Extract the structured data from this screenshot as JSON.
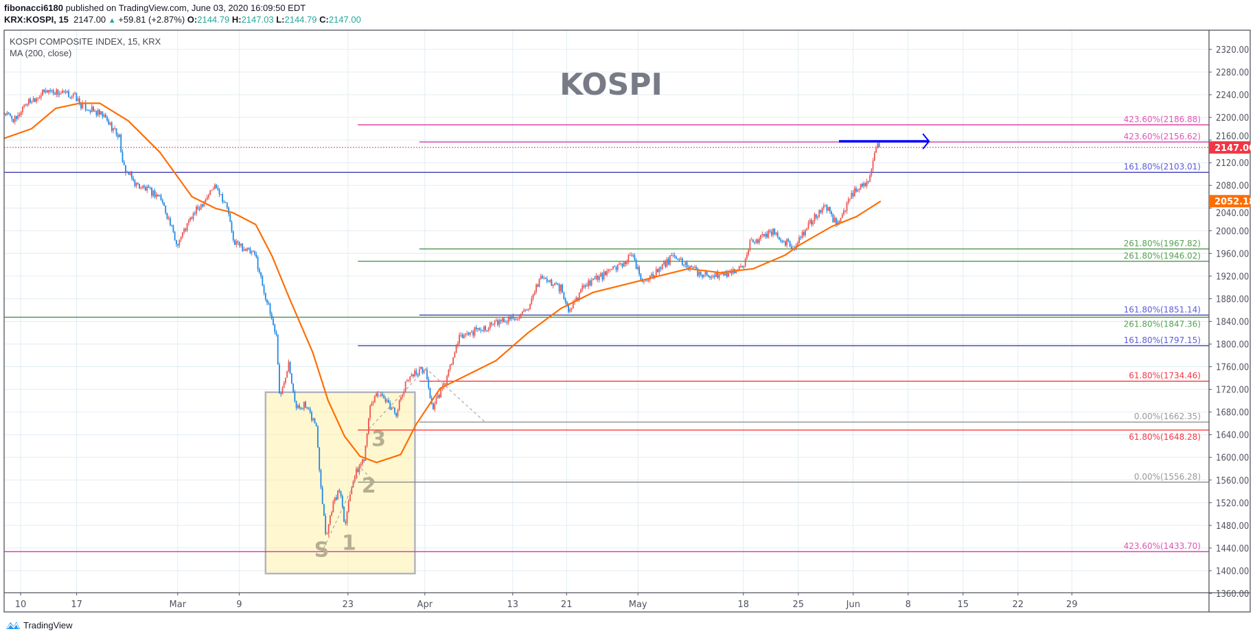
{
  "header": {
    "author": "fibonacci6180",
    "published": " published on TradingView.com, June 03, 2020 16:09:50 EDT",
    "symbol": "KRX:KOSPI, 15",
    "last": "2147.00",
    "change": "+59.81 (+2.87%)",
    "o_label": "O:",
    "o": "2144.79",
    "h_label": "H:",
    "h": "2147.03",
    "l_label": "L:",
    "l": "2144.79",
    "c_label": "C:",
    "c": "2147.00"
  },
  "legend": {
    "title": "KOSPI COMPOSITE INDEX, 15, KRX",
    "indicator": "MA (200, close)"
  },
  "footer": {
    "brand": "TradingView"
  },
  "colors": {
    "up": "#ef5350",
    "down": "#1e88e5",
    "ma": "#ff6d00",
    "price_tag": "#f23645",
    "grid": "#e1ecf2",
    "magenta": "#d6339e",
    "blue": "#2a2ab0",
    "green": "#3a8a3a",
    "red": "#ff2020",
    "gray": "#888888",
    "arrow": "#0000ff"
  },
  "chart_data": {
    "type": "line",
    "title": "KOSPI",
    "xlabel": "",
    "ylabel": "",
    "x_unit": "trading sessions from chart start",
    "xlim": [
      0,
      109.7
    ],
    "ylim": [
      1360,
      2340
    ],
    "grid": true,
    "y_ticks": [
      "2320.00",
      "2280.00",
      "2240.00",
      "2200.00",
      "2160.00",
      "2120.00",
      "2080.00",
      "2040.00",
      "2000.00",
      "1960.00",
      "1920.00",
      "1880.00",
      "1840.00",
      "1800.00",
      "1760.00",
      "1720.00",
      "1680.00",
      "1640.00",
      "1600.00",
      "1560.00",
      "1520.00",
      "1480.00",
      "1440.00",
      "1400.00",
      "1360.00"
    ],
    "x_ticks": [
      {
        "label": "10",
        "x": 1.5
      },
      {
        "label": "17",
        "x": 6.6
      },
      {
        "label": "Mar",
        "x": 15.8
      },
      {
        "label": "9",
        "x": 21.4
      },
      {
        "label": "23",
        "x": 31.3
      },
      {
        "label": "Apr",
        "x": 38.3
      },
      {
        "label": "13",
        "x": 46.3
      },
      {
        "label": "21",
        "x": 51.2
      },
      {
        "label": "May",
        "x": 57.7
      },
      {
        "label": "18",
        "x": 67.3
      },
      {
        "label": "25",
        "x": 72.3
      },
      {
        "label": "Jun",
        "x": 77.3
      },
      {
        "label": "8",
        "x": 82.3
      },
      {
        "label": "15",
        "x": 87.3
      },
      {
        "label": "22",
        "x": 92.3
      },
      {
        "label": "29",
        "x": 97.2
      }
    ],
    "series": [
      {
        "name": "KOSPI (15m candles, approx path)",
        "points": [
          [
            0,
            2208
          ],
          [
            1.1,
            2194
          ],
          [
            1.8,
            2223
          ],
          [
            4.0,
            2248
          ],
          [
            6.5,
            2237
          ],
          [
            6.9,
            2223
          ],
          [
            9.1,
            2201
          ],
          [
            10.6,
            2163
          ],
          [
            10.7,
            2117
          ],
          [
            12.0,
            2082
          ],
          [
            14.2,
            2060
          ],
          [
            14.9,
            2025
          ],
          [
            15.7,
            1976
          ],
          [
            17.1,
            2025
          ],
          [
            19.3,
            2082
          ],
          [
            20.4,
            2036
          ],
          [
            20.8,
            1983
          ],
          [
            22.9,
            1955
          ],
          [
            23.7,
            1891
          ],
          [
            24.4,
            1842
          ],
          [
            24.8,
            1813
          ],
          [
            25.1,
            1700
          ],
          [
            25.9,
            1771
          ],
          [
            26.6,
            1686
          ],
          [
            27.3,
            1693
          ],
          [
            28.4,
            1658
          ],
          [
            28.8,
            1559
          ],
          [
            29.3,
            1461
          ],
          [
            29.9,
            1517
          ],
          [
            30.6,
            1545
          ],
          [
            31.0,
            1482
          ],
          [
            31.7,
            1559
          ],
          [
            32.8,
            1602
          ],
          [
            33.2,
            1679
          ],
          [
            33.9,
            1715
          ],
          [
            34.6,
            1700
          ],
          [
            35.7,
            1679
          ],
          [
            36.8,
            1743
          ],
          [
            38.3,
            1757
          ],
          [
            39.0,
            1686
          ],
          [
            40.1,
            1729
          ],
          [
            41.5,
            1813
          ],
          [
            43.4,
            1827
          ],
          [
            45.6,
            1842
          ],
          [
            47.7,
            1856
          ],
          [
            48.8,
            1919
          ],
          [
            50.7,
            1898
          ],
          [
            51.4,
            1856
          ],
          [
            52.8,
            1905
          ],
          [
            55.0,
            1926
          ],
          [
            57.2,
            1955
          ],
          [
            58.0,
            1912
          ],
          [
            59.4,
            1926
          ],
          [
            60.9,
            1955
          ],
          [
            63.1,
            1926
          ],
          [
            65.2,
            1919
          ],
          [
            67.4,
            1940
          ],
          [
            67.8,
            1976
          ],
          [
            70.0,
            2000
          ],
          [
            71.8,
            1969
          ],
          [
            72.5,
            1990
          ],
          [
            74.7,
            2046
          ],
          [
            75.8,
            2011
          ],
          [
            77.3,
            2067
          ],
          [
            78.7,
            2089
          ],
          [
            78.9,
            2110
          ],
          [
            79.5,
            2152
          ],
          [
            79.8,
            2147
          ]
        ]
      },
      {
        "name": "MA (200, close)",
        "points": [
          [
            0,
            2163
          ],
          [
            2.5,
            2180
          ],
          [
            4.7,
            2216
          ],
          [
            6.9,
            2225
          ],
          [
            8.7,
            2225
          ],
          [
            11.3,
            2194
          ],
          [
            14.2,
            2138
          ],
          [
            17.1,
            2060
          ],
          [
            19.3,
            2039
          ],
          [
            20.8,
            2032
          ],
          [
            22.9,
            2011
          ],
          [
            24.4,
            1955
          ],
          [
            25.9,
            1884
          ],
          [
            28.1,
            1785
          ],
          [
            29.5,
            1700
          ],
          [
            31.0,
            1637
          ],
          [
            32.4,
            1602
          ],
          [
            33.9,
            1591
          ],
          [
            36.1,
            1605
          ],
          [
            37.5,
            1658
          ],
          [
            39.7,
            1722
          ],
          [
            41.9,
            1743
          ],
          [
            44.8,
            1771
          ],
          [
            47.7,
            1820
          ],
          [
            50.7,
            1863
          ],
          [
            53.6,
            1891
          ],
          [
            56.5,
            1905
          ],
          [
            59.4,
            1919
          ],
          [
            62.3,
            1933
          ],
          [
            65.2,
            1926
          ],
          [
            68.2,
            1933
          ],
          [
            71.1,
            1957
          ],
          [
            72.5,
            1976
          ],
          [
            75.4,
            2008
          ],
          [
            77.6,
            2025
          ],
          [
            79.8,
            2052.18
          ]
        ]
      }
    ],
    "last_price": {
      "value": 2147.0,
      "label": "2147.00"
    },
    "ma_last": {
      "value": 2052.18,
      "label": "2052.18"
    },
    "fib_levels": [
      {
        "label": "423.60%(2186.88)",
        "value": 2186.88,
        "color": "magenta",
        "x_start": 32.2
      },
      {
        "label": "423.60%(2156.62)",
        "value": 2156.62,
        "color": "magenta",
        "x_start": 37.8
      },
      {
        "label": "161.80%(2103.01)",
        "value": 2103.01,
        "color": "blue",
        "x_start": 0
      },
      {
        "label": "261.80%(1967.82)",
        "value": 1967.82,
        "color": "green",
        "x_start": 37.8
      },
      {
        "label": "261.80%(1946.02)",
        "value": 1946.02,
        "color": "green",
        "x_start": 32.2
      },
      {
        "label": "161.80%(1851.14)",
        "value": 1851.14,
        "color": "blue",
        "x_start": 37.8
      },
      {
        "label": "261.80%(1847.36)",
        "value": 1847.36,
        "color": "green",
        "x_start": 0
      },
      {
        "label": "161.80%(1797.15)",
        "value": 1797.15,
        "color": "blue",
        "x_start": 32.2
      },
      {
        "label": "61.80%(1734.46)",
        "value": 1734.46,
        "color": "red",
        "x_start": 37.8
      },
      {
        "label": "0.00%(1662.35)",
        "value": 1662.35,
        "color": "gray",
        "x_start": 37.8
      },
      {
        "label": "61.80%(1648.28)",
        "value": 1648.28,
        "color": "red",
        "x_start": 32.2
      },
      {
        "label": "0.00%(1556.28)",
        "value": 1556.28,
        "color": "gray",
        "x_start": 32.2
      },
      {
        "label": "423.60%(1433.70)",
        "value": 1433.7,
        "color": "magenta",
        "x_start": 0
      }
    ],
    "annotations": {
      "wave_labels": [
        {
          "text": "S",
          "x": 28.9,
          "y": 1425
        },
        {
          "text": "1",
          "x": 31.4,
          "y": 1437
        },
        {
          "text": "2",
          "x": 33.2,
          "y": 1538
        },
        {
          "text": "3",
          "x": 34.1,
          "y": 1620
        }
      ],
      "box": {
        "x": [
          23.8,
          37.4
        ],
        "y": [
          1395,
          1715
        ]
      },
      "arrow": {
        "x": [
          76.0,
          84.2
        ],
        "y": 2156.62
      }
    }
  }
}
